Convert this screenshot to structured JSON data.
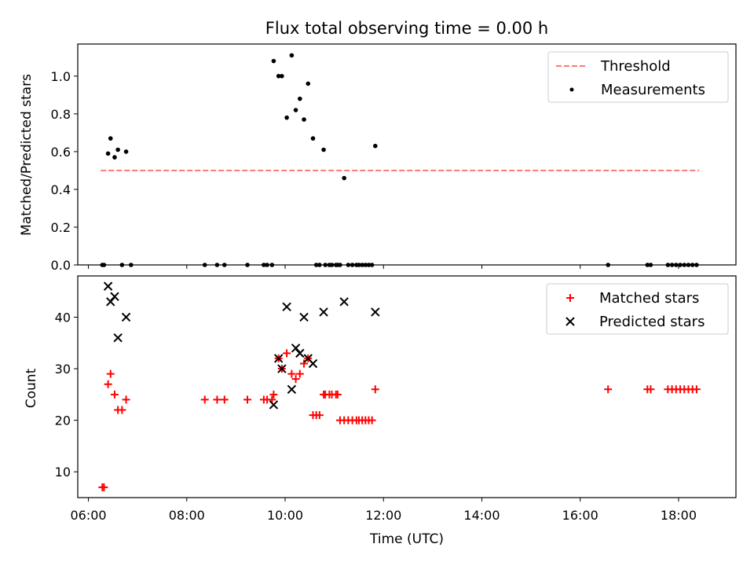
{
  "chart_data": [
    {
      "type": "scatter",
      "title": "Flux total observing time = 0.00 h",
      "xlabel": "",
      "ylabel": "Matched/Predicted stars",
      "xlim": [
        "05:47",
        "19:10"
      ],
      "ylim": [
        0.0,
        1.17
      ],
      "yticks": [
        "0.0",
        "0.2",
        "0.4",
        "0.6",
        "0.8",
        "1.0"
      ],
      "grid": false,
      "legend": {
        "placement": "top-right",
        "entries": [
          "Threshold",
          "Measurements"
        ]
      },
      "series": [
        {
          "name": "Threshold",
          "kind": "dashed-line",
          "color": "#ff7777",
          "x": [
            "06:15",
            "18:25"
          ],
          "y": [
            0.5,
            0.5
          ]
        },
        {
          "name": "Measurements",
          "kind": "dot",
          "color": "#000000",
          "x": [
            "06:17",
            "06:19",
            "06:24",
            "06:27",
            "06:32",
            "06:36",
            "06:41",
            "06:46",
            "06:52",
            "08:22",
            "08:37",
            "08:46",
            "09:14",
            "09:34",
            "09:38",
            "09:44",
            "09:46",
            "09:52",
            "09:56",
            "10:02",
            "10:08",
            "10:13",
            "10:18",
            "10:23",
            "10:28",
            "10:34",
            "10:38",
            "10:42",
            "10:47",
            "10:49",
            "10:54",
            "10:57",
            "11:02",
            "11:04",
            "11:07",
            "11:12",
            "11:17",
            "11:22",
            "11:27",
            "11:30",
            "11:34",
            "11:38",
            "11:42",
            "11:46",
            "11:50",
            "16:34",
            "17:22",
            "17:26",
            "17:47",
            "17:52",
            "17:57",
            "18:02",
            "18:07",
            "18:12",
            "18:17",
            "18:22"
          ],
          "y": [
            0,
            0,
            0.59,
            0.67,
            0.57,
            0.61,
            0,
            0.6,
            0,
            0,
            0,
            0,
            0,
            0,
            0,
            0,
            1.08,
            1.0,
            1.0,
            0.78,
            1.11,
            0.82,
            0.88,
            0.77,
            0.96,
            0.67,
            0,
            0,
            0.61,
            0,
            0,
            0,
            0,
            0,
            0,
            0.46,
            0,
            0,
            0,
            0,
            0,
            0,
            0,
            0,
            0.63,
            0,
            0,
            0,
            0,
            0,
            0,
            0,
            0,
            0,
            0,
            0
          ]
        }
      ]
    },
    {
      "type": "scatter",
      "title": "",
      "xlabel": "Time (UTC)",
      "ylabel": "Count",
      "xlim": [
        "05:47",
        "19:10"
      ],
      "ylim": [
        5.0,
        48.0
      ],
      "xticks": [
        "06:00",
        "08:00",
        "10:00",
        "12:00",
        "14:00",
        "16:00",
        "18:00"
      ],
      "yticks": [
        "10",
        "20",
        "30",
        "40"
      ],
      "grid": false,
      "legend": {
        "placement": "top-right",
        "entries": [
          "Matched stars",
          "Predicted stars"
        ]
      },
      "series": [
        {
          "name": "Matched stars",
          "kind": "plus",
          "color": "#ff0000",
          "x": [
            "06:17",
            "06:19",
            "06:24",
            "06:27",
            "06:32",
            "06:36",
            "06:41",
            "06:46",
            "08:22",
            "08:37",
            "08:46",
            "09:14",
            "09:34",
            "09:38",
            "09:44",
            "09:46",
            "09:52",
            "09:56",
            "10:02",
            "10:08",
            "10:13",
            "10:18",
            "10:23",
            "10:28",
            "10:34",
            "10:38",
            "10:42",
            "10:47",
            "10:49",
            "10:54",
            "10:57",
            "11:02",
            "11:04",
            "11:07",
            "11:12",
            "11:17",
            "11:22",
            "11:27",
            "11:30",
            "11:34",
            "11:38",
            "11:42",
            "11:46",
            "11:50",
            "16:34",
            "17:22",
            "17:26",
            "17:47",
            "17:52",
            "17:57",
            "18:02",
            "18:07",
            "18:12",
            "18:17",
            "18:22"
          ],
          "y": [
            7,
            7,
            27,
            29,
            25,
            22,
            22,
            24,
            24,
            24,
            24,
            24,
            24,
            24,
            24,
            25,
            32,
            30,
            33,
            29,
            28,
            29,
            31,
            32,
            21,
            21,
            21,
            25,
            25,
            25,
            25,
            25,
            25,
            20,
            20,
            20,
            20,
            20,
            20,
            20,
            20,
            20,
            20,
            26,
            26,
            26,
            26,
            26,
            26,
            26,
            26,
            26,
            26,
            26,
            26
          ]
        },
        {
          "name": "Predicted stars",
          "kind": "x",
          "color": "#000000",
          "x": [
            "06:24",
            "06:27",
            "06:32",
            "06:36",
            "06:46",
            "09:46",
            "09:52",
            "09:56",
            "10:02",
            "10:08",
            "10:13",
            "10:18",
            "10:23",
            "10:28",
            "10:34",
            "10:47",
            "11:12",
            "11:50"
          ],
          "y": [
            46,
            43,
            44,
            36,
            40,
            23,
            32,
            30,
            42,
            26,
            34,
            33,
            40,
            32,
            31,
            41,
            43,
            41
          ]
        }
      ]
    }
  ]
}
